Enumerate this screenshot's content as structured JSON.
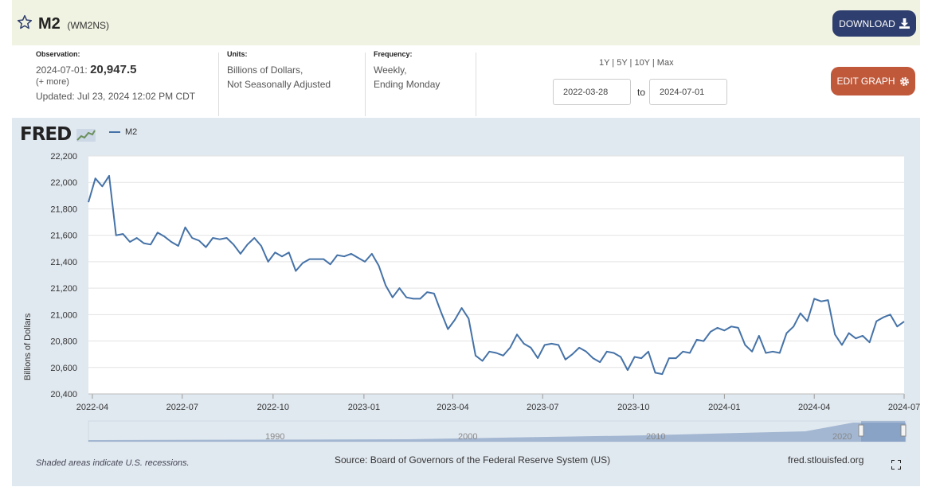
{
  "header": {
    "title": "M2",
    "series_id": "(WM2NS)",
    "download_label": "DOWNLOAD"
  },
  "observation": {
    "label": "Observation:",
    "date": "2024-07-01:",
    "value": "20,947.5",
    "more": "(+ more)",
    "updated": "Updated: Jul 23, 2024 12:02 PM CDT"
  },
  "units": {
    "label": "Units:",
    "line1": "Billions of Dollars,",
    "line2": "Not Seasonally Adjusted"
  },
  "frequency": {
    "label": "Frequency:",
    "line1": "Weekly,",
    "line2": "Ending Monday"
  },
  "range": {
    "options": "1Y | 5Y | 10Y | Max",
    "start": "2022-03-28",
    "to": "to",
    "end": "2024-07-01"
  },
  "edit_label": "EDIT GRAPH",
  "logo": "FRED",
  "footer": {
    "recession_note": "Shaded areas indicate U.S. recessions.",
    "source": "Source: Board of Governors of the Federal Reserve System (US)",
    "site": "fred.stlouisfed.org"
  },
  "colors": {
    "series": "#4572a7",
    "header_bg": "#f1f3e2",
    "download_btn": "#2e3e6e",
    "edit_btn": "#c0583a",
    "graph_bg": "#e1e9f0"
  },
  "chart_data": {
    "type": "line",
    "title": "",
    "xlabel": "",
    "ylabel": "Billions of Dollars",
    "legend": "top-left",
    "grid": true,
    "ylim": [
      20400,
      22200
    ],
    "yticks": [
      20400,
      20600,
      20800,
      21000,
      21200,
      21400,
      21600,
      21800,
      22000,
      22200
    ],
    "ytick_labels": [
      "20,400",
      "20,600",
      "20,800",
      "21,000",
      "21,200",
      "21,400",
      "21,600",
      "21,800",
      "22,000",
      "22,200"
    ],
    "xticks": [
      "2022-04",
      "2022-07",
      "2022-10",
      "2023-01",
      "2023-04",
      "2023-07",
      "2023-10",
      "2024-01",
      "2024-04",
      "2024-07"
    ],
    "x_start": "2022-03-28",
    "x_end": "2024-07-01",
    "series": [
      {
        "name": "M2",
        "values": [
          21850,
          22030,
          21970,
          22050,
          21600,
          21610,
          21550,
          21580,
          21540,
          21530,
          21620,
          21590,
          21550,
          21520,
          21660,
          21580,
          21560,
          21510,
          21580,
          21570,
          21580,
          21530,
          21460,
          21530,
          21580,
          21520,
          21400,
          21470,
          21440,
          21470,
          21330,
          21390,
          21420,
          21420,
          21420,
          21380,
          21450,
          21440,
          21460,
          21430,
          21400,
          21460,
          21370,
          21220,
          21130,
          21200,
          21130,
          21120,
          21120,
          21170,
          21160,
          21020,
          20890,
          20960,
          21050,
          20970,
          20690,
          20650,
          20720,
          20710,
          20690,
          20750,
          20850,
          20780,
          20750,
          20670,
          20770,
          20780,
          20770,
          20660,
          20700,
          20750,
          20720,
          20670,
          20640,
          20720,
          20710,
          20680,
          20580,
          20680,
          20670,
          20720,
          20560,
          20550,
          20670,
          20670,
          20720,
          20710,
          20810,
          20800,
          20870,
          20900,
          20880,
          20910,
          20900,
          20770,
          20720,
          20840,
          20710,
          20720,
          20710,
          20860,
          20910,
          21010,
          20950,
          21120,
          21100,
          21110,
          20850,
          20770,
          20860,
          20820,
          20840,
          20790,
          20950,
          20980,
          21000,
          20910,
          20947.5
        ]
      }
    ],
    "minimap_ticks": [
      "1990",
      "2000",
      "2010",
      "2020"
    ]
  }
}
